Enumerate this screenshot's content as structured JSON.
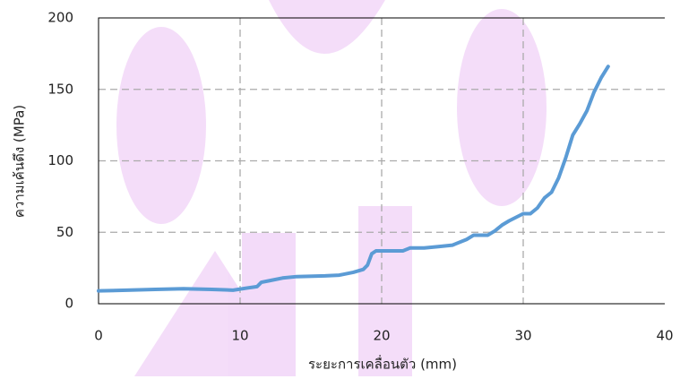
{
  "chart_data": {
    "type": "line",
    "x_label": "ระยะการเคลื่อนตัว (mm)",
    "y_label": "ความเค้นดึง (MPa)",
    "xlim": [
      0,
      40
    ],
    "xticks": [
      0,
      10,
      20,
      30,
      40
    ],
    "ylim": [
      0,
      200
    ],
    "yticks": [
      0,
      50,
      100,
      150,
      200
    ],
    "grid": true,
    "series": [
      {
        "color": "#5b9bd5",
        "x": [
          0,
          2,
          4,
          6,
          8,
          9.5,
          10.5,
          11.2,
          11.5,
          12,
          13,
          14,
          16,
          17,
          18,
          18.7,
          19,
          19.3,
          19.6,
          20,
          21,
          21.5,
          22,
          23,
          24,
          25,
          26,
          26.5,
          27.5,
          28,
          28.5,
          29,
          30,
          30.5,
          31,
          31.5,
          32,
          32.5,
          33,
          33.5,
          34,
          34.5,
          35,
          35.5,
          36
        ],
        "values": [
          9,
          9.5,
          10,
          10.5,
          10,
          9.5,
          11,
          12,
          15,
          16,
          18,
          19,
          19.5,
          20,
          22,
          24,
          27,
          35,
          37,
          37,
          37,
          37,
          39,
          39,
          40,
          41,
          45,
          48,
          48,
          51,
          55,
          58,
          63,
          63,
          67,
          74,
          78,
          88,
          102,
          118,
          126,
          135,
          148,
          158,
          166
        ]
      }
    ]
  }
}
